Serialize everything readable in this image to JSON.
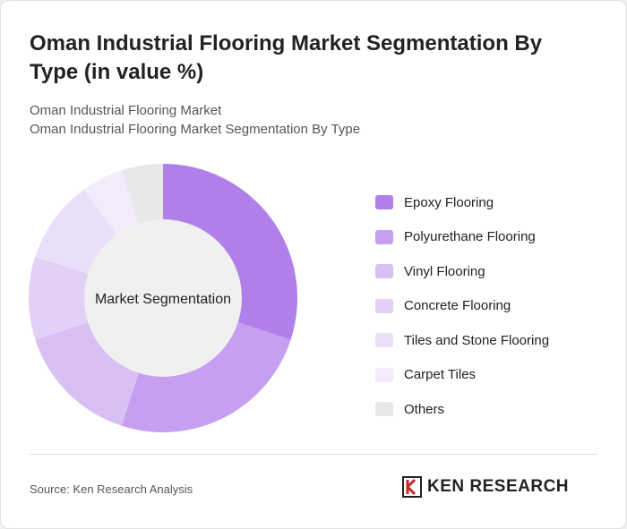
{
  "title": "Oman Industrial Flooring Market Segmentation By Type (in value %)",
  "subtitle1": "Oman Industrial Flooring Market",
  "subtitle2": "Oman Industrial Flooring Market Segmentation By Type",
  "source": "Source: Ken Research Analysis",
  "logo": "KEN RESEARCH",
  "chart_data": {
    "type": "pie",
    "donut": true,
    "center_label": "Market Segmentation",
    "categories": [
      "Epoxy Flooring",
      "Polyurethane Flooring",
      "Vinyl Flooring",
      "Concrete Flooring",
      "Tiles and Stone Flooring",
      "Carpet Tiles",
      "Others"
    ],
    "values": [
      30,
      25,
      15,
      10,
      10,
      5,
      5
    ],
    "colors": [
      "#b17fea",
      "#c69ff0",
      "#d8c0f5",
      "#e2d0f7",
      "#eadff9",
      "#f2ebfb",
      "#e8e8e8"
    ],
    "legend": "right"
  }
}
